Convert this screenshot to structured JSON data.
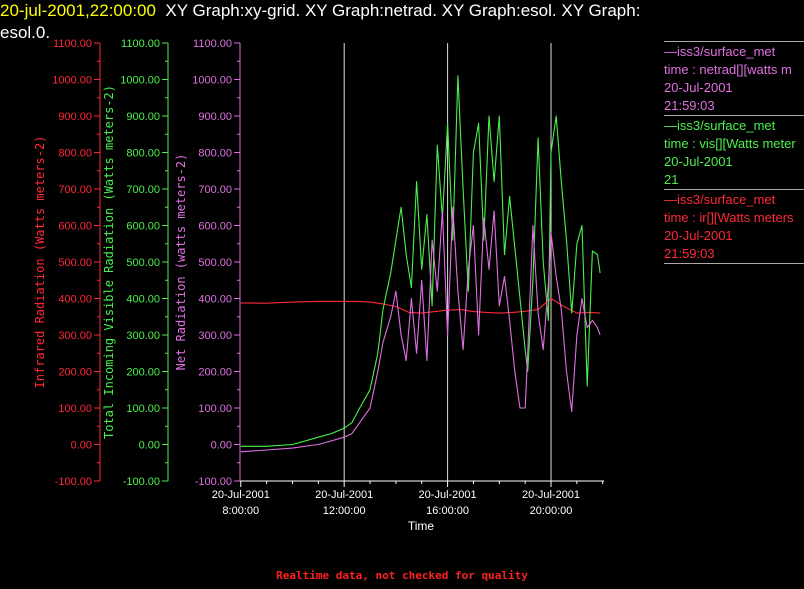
{
  "header": {
    "timestamp": "20-jul-2001,22:00:00",
    "graphs": "XY Graph:xy-grid.  XY Graph:netrad.  XY Graph:esol.  XY Graph:",
    "graphs_cont": "esol.0."
  },
  "footer": "Realtime data, not checked for quality",
  "colors": {
    "red": "#ff2838",
    "green": "#4cf04c",
    "violet": "#e070e0",
    "grid": "#dddddd"
  },
  "legend": [
    {
      "name": "—iss3/surface_met",
      "var": "time : netrad[][watts m",
      "date": "20-Jul-2001",
      "time": "21:59:03",
      "color": "#e070e0"
    },
    {
      "name": "—iss3/surface_met",
      "var": "time : vis[][Watts meter",
      "date": "20-Jul-2001",
      "time": "21",
      "color": "#4cf04c"
    },
    {
      "name": "—iss3/surface_met",
      "var": "time : ir[][Watts meters",
      "date": "20-Jul-2001",
      "time": "21:59:03",
      "color": "#ff2838"
    }
  ],
  "chart_data": {
    "type": "line",
    "xlabel": "Time",
    "x_ticks": [
      {
        "date": "20-Jul-2001",
        "time": "8:00:00"
      },
      {
        "date": "20-Jul-2001",
        "time": "12:00:00"
      },
      {
        "date": "20-Jul-2001",
        "time": "16:00:00"
      },
      {
        "date": "20-Jul-2001",
        "time": "20:00:00"
      }
    ],
    "xlim_hours": [
      7.97,
      22.05
    ],
    "axes": [
      {
        "id": "ir",
        "label": "Infrared Radiation (Watts meters-2)",
        "color": "#ff2838",
        "ylim": [
          -100,
          1100
        ],
        "ticks": [
          "-100.00",
          "0.00",
          "100.00",
          "200.00",
          "300.00",
          "400.00",
          "500.00",
          "600.00",
          "700.00",
          "800.00",
          "900.00",
          "1000.00",
          "1100.00"
        ]
      },
      {
        "id": "vis",
        "label": "Total Incoming Visible Radiation (Watts meters-2)",
        "color": "#4cf04c",
        "ylim": [
          -100,
          1100
        ],
        "ticks": [
          "-100.00",
          "0.00",
          "100.00",
          "200.00",
          "300.00",
          "400.00",
          "500.00",
          "600.00",
          "700.00",
          "800.00",
          "900.00",
          "1000.00",
          "1100.00"
        ]
      },
      {
        "id": "net",
        "label": "Net Radiation (watts meters-2)",
        "color": "#e070e0",
        "ylim": [
          -100,
          1100
        ],
        "ticks": [
          "-100.00",
          "0.00",
          "100.00",
          "200.00",
          "300.00",
          "400.00",
          "500.00",
          "600.00",
          "700.00",
          "800.00",
          "900.00",
          "1000.00",
          "1100.00"
        ]
      }
    ],
    "series": [
      {
        "axis": "ir",
        "color": "#ff2838",
        "x": [
          8.0,
          9.0,
          10.0,
          11.0,
          12.0,
          12.5,
          13.0,
          13.5,
          14.0,
          14.5,
          15.0,
          15.5,
          16.0,
          16.5,
          17.0,
          17.5,
          18.0,
          18.5,
          19.0,
          19.5,
          19.8,
          20.0,
          20.5,
          21.0,
          21.5,
          21.9
        ],
        "y": [
          388,
          387,
          390,
          392,
          392,
          392,
          390,
          385,
          378,
          362,
          360,
          364,
          368,
          370,
          364,
          362,
          360,
          362,
          365,
          370,
          388,
          400,
          378,
          360,
          362,
          360
        ]
      },
      {
        "axis": "vis",
        "color": "#4cf04c",
        "x": [
          8.0,
          9.0,
          10.0,
          11.0,
          11.5,
          12.0,
          12.3,
          12.6,
          13.0,
          13.3,
          13.5,
          13.8,
          14.0,
          14.2,
          14.4,
          14.6,
          14.8,
          15.0,
          15.2,
          15.4,
          15.6,
          15.8,
          16.0,
          16.2,
          16.4,
          16.6,
          16.8,
          17.0,
          17.2,
          17.4,
          17.6,
          17.8,
          18.0,
          18.2,
          18.4,
          18.6,
          18.8,
          19.0,
          19.1,
          19.3,
          19.5,
          19.7,
          19.9,
          20.0,
          20.2,
          20.4,
          20.6,
          20.8,
          21.0,
          21.2,
          21.4,
          21.6,
          21.8,
          21.9
        ],
        "y": [
          -5,
          -5,
          0,
          20,
          30,
          45,
          60,
          100,
          150,
          250,
          370,
          470,
          560,
          650,
          520,
          430,
          720,
          480,
          630,
          380,
          820,
          620,
          880,
          560,
          1010,
          700,
          420,
          800,
          880,
          560,
          900,
          720,
          900,
          520,
          680,
          540,
          400,
          260,
          200,
          450,
          840,
          500,
          340,
          800,
          900,
          720,
          560,
          360,
          550,
          600,
          160,
          530,
          520,
          470
        ]
      },
      {
        "axis": "net",
        "color": "#e070e0",
        "x": [
          8.0,
          9.0,
          10.0,
          11.0,
          11.5,
          12.0,
          12.3,
          12.6,
          13.0,
          13.3,
          13.5,
          13.8,
          14.0,
          14.2,
          14.4,
          14.6,
          14.8,
          15.0,
          15.2,
          15.4,
          15.6,
          15.8,
          16.0,
          16.2,
          16.4,
          16.6,
          16.8,
          17.0,
          17.2,
          17.4,
          17.6,
          17.8,
          18.0,
          18.2,
          18.4,
          18.6,
          18.8,
          19.0,
          19.1,
          19.3,
          19.5,
          19.7,
          19.9,
          20.0,
          20.2,
          20.4,
          20.6,
          20.8,
          21.0,
          21.2,
          21.4,
          21.6,
          21.8,
          21.9
        ],
        "y": [
          -20,
          -15,
          -10,
          0,
          10,
          20,
          30,
          60,
          100,
          200,
          280,
          350,
          420,
          300,
          230,
          400,
          250,
          450,
          230,
          560,
          420,
          640,
          300,
          650,
          420,
          260,
          480,
          600,
          300,
          620,
          480,
          640,
          380,
          460,
          340,
          200,
          100,
          100,
          250,
          600,
          360,
          260,
          440,
          580,
          460,
          370,
          200,
          90,
          300,
          400,
          320,
          340,
          320,
          300
        ]
      }
    ]
  }
}
